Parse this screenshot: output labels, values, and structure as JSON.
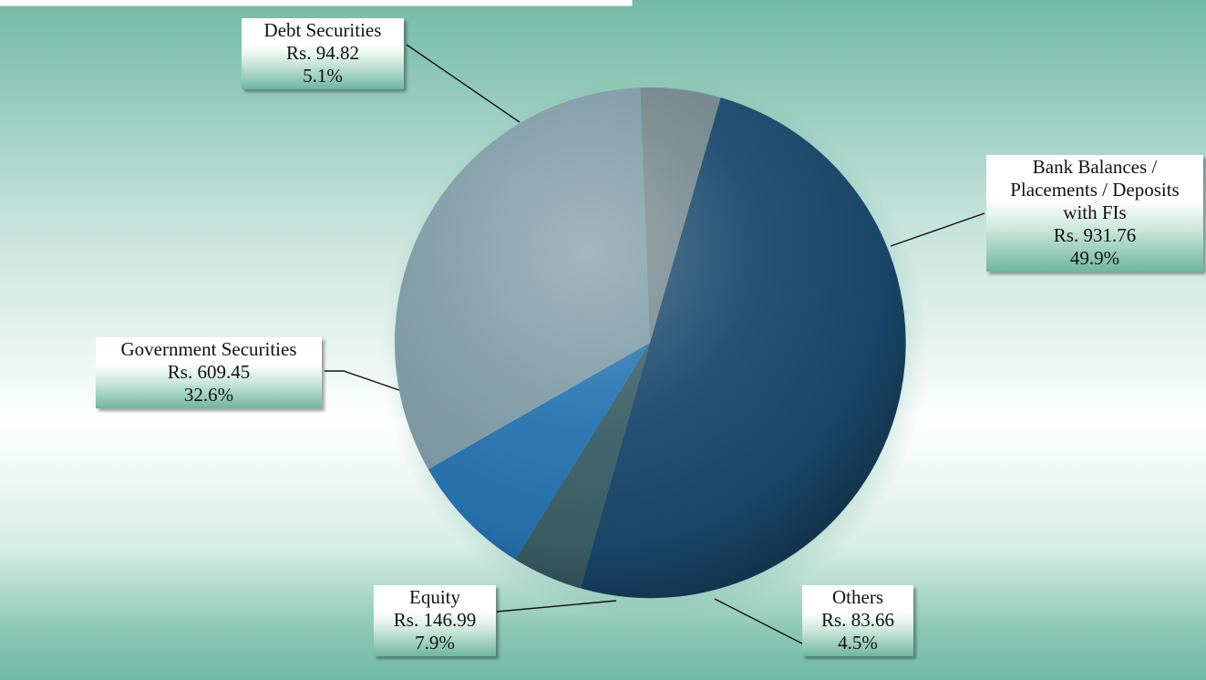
{
  "chart_data": {
    "type": "pie",
    "currency_prefix": "Rs.",
    "slices": [
      {
        "label": "Bank Balances / Placements / Deposits with FIs",
        "label_lines": [
          "Bank Balances /",
          "Placements / Deposits",
          "with FIs"
        ],
        "value": 931.76,
        "value_text": "Rs.  931.76",
        "percent": 49.9,
        "percent_text": "49.9%",
        "color": "#1b4a6e"
      },
      {
        "label": "Others",
        "label_lines": [
          "Others"
        ],
        "value": 83.66,
        "value_text": "Rs.  83.66",
        "percent": 4.5,
        "percent_text": "4.5%",
        "color": "#3d6068"
      },
      {
        "label": "Equity",
        "label_lines": [
          "Equity"
        ],
        "value": 146.99,
        "value_text": "Rs.  146.99",
        "percent": 7.9,
        "percent_text": "7.9%",
        "color": "#2674b2"
      },
      {
        "label": "Government Securities",
        "label_lines": [
          "Government Securities"
        ],
        "value": 609.45,
        "value_text": "Rs.  609.45",
        "percent": 32.6,
        "percent_text": "32.6%",
        "color": "#7e9ba6"
      },
      {
        "label": "Debt Securities",
        "label_lines": [
          "Debt Securities"
        ],
        "value": 94.82,
        "value_text": "Rs.  94.82",
        "percent": 5.1,
        "percent_text": "5.1%",
        "color": "#74878c"
      }
    ],
    "legend": "none",
    "labels": "outside-with-leader-lines"
  }
}
